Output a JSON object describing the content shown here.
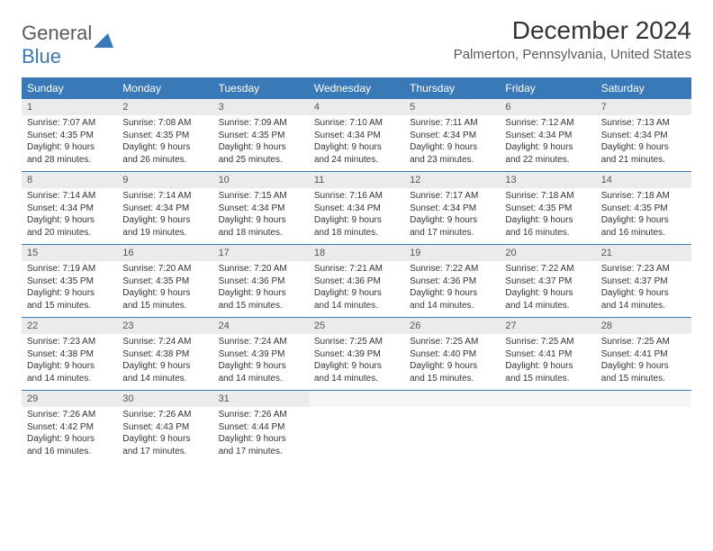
{
  "logo": {
    "word1": "General",
    "word2": "Blue"
  },
  "title": "December 2024",
  "location": "Palmerton, Pennsylvania, United States",
  "colors": {
    "brand_blue": "#3a79b7",
    "header_text": "#ffffff",
    "day_num_bg": "#ebebeb",
    "day_num_empty_bg": "#f5f5f5",
    "body_text": "#333333",
    "location_text": "#5a5a5a",
    "logo_gray": "#5a5a5a"
  },
  "typography": {
    "month_title_pt": 28,
    "location_pt": 15,
    "weekday_pt": 12,
    "daynum_pt": 11,
    "body_pt": 10
  },
  "weekdays": [
    "Sunday",
    "Monday",
    "Tuesday",
    "Wednesday",
    "Thursday",
    "Friday",
    "Saturday"
  ],
  "weeks": [
    [
      {
        "n": "1",
        "sunrise": "Sunrise: 7:07 AM",
        "sunset": "Sunset: 4:35 PM",
        "daylight": "Daylight: 9 hours and 28 minutes."
      },
      {
        "n": "2",
        "sunrise": "Sunrise: 7:08 AM",
        "sunset": "Sunset: 4:35 PM",
        "daylight": "Daylight: 9 hours and 26 minutes."
      },
      {
        "n": "3",
        "sunrise": "Sunrise: 7:09 AM",
        "sunset": "Sunset: 4:35 PM",
        "daylight": "Daylight: 9 hours and 25 minutes."
      },
      {
        "n": "4",
        "sunrise": "Sunrise: 7:10 AM",
        "sunset": "Sunset: 4:34 PM",
        "daylight": "Daylight: 9 hours and 24 minutes."
      },
      {
        "n": "5",
        "sunrise": "Sunrise: 7:11 AM",
        "sunset": "Sunset: 4:34 PM",
        "daylight": "Daylight: 9 hours and 23 minutes."
      },
      {
        "n": "6",
        "sunrise": "Sunrise: 7:12 AM",
        "sunset": "Sunset: 4:34 PM",
        "daylight": "Daylight: 9 hours and 22 minutes."
      },
      {
        "n": "7",
        "sunrise": "Sunrise: 7:13 AM",
        "sunset": "Sunset: 4:34 PM",
        "daylight": "Daylight: 9 hours and 21 minutes."
      }
    ],
    [
      {
        "n": "8",
        "sunrise": "Sunrise: 7:14 AM",
        "sunset": "Sunset: 4:34 PM",
        "daylight": "Daylight: 9 hours and 20 minutes."
      },
      {
        "n": "9",
        "sunrise": "Sunrise: 7:14 AM",
        "sunset": "Sunset: 4:34 PM",
        "daylight": "Daylight: 9 hours and 19 minutes."
      },
      {
        "n": "10",
        "sunrise": "Sunrise: 7:15 AM",
        "sunset": "Sunset: 4:34 PM",
        "daylight": "Daylight: 9 hours and 18 minutes."
      },
      {
        "n": "11",
        "sunrise": "Sunrise: 7:16 AM",
        "sunset": "Sunset: 4:34 PM",
        "daylight": "Daylight: 9 hours and 18 minutes."
      },
      {
        "n": "12",
        "sunrise": "Sunrise: 7:17 AM",
        "sunset": "Sunset: 4:34 PM",
        "daylight": "Daylight: 9 hours and 17 minutes."
      },
      {
        "n": "13",
        "sunrise": "Sunrise: 7:18 AM",
        "sunset": "Sunset: 4:35 PM",
        "daylight": "Daylight: 9 hours and 16 minutes."
      },
      {
        "n": "14",
        "sunrise": "Sunrise: 7:18 AM",
        "sunset": "Sunset: 4:35 PM",
        "daylight": "Daylight: 9 hours and 16 minutes."
      }
    ],
    [
      {
        "n": "15",
        "sunrise": "Sunrise: 7:19 AM",
        "sunset": "Sunset: 4:35 PM",
        "daylight": "Daylight: 9 hours and 15 minutes."
      },
      {
        "n": "16",
        "sunrise": "Sunrise: 7:20 AM",
        "sunset": "Sunset: 4:35 PM",
        "daylight": "Daylight: 9 hours and 15 minutes."
      },
      {
        "n": "17",
        "sunrise": "Sunrise: 7:20 AM",
        "sunset": "Sunset: 4:36 PM",
        "daylight": "Daylight: 9 hours and 15 minutes."
      },
      {
        "n": "18",
        "sunrise": "Sunrise: 7:21 AM",
        "sunset": "Sunset: 4:36 PM",
        "daylight": "Daylight: 9 hours and 14 minutes."
      },
      {
        "n": "19",
        "sunrise": "Sunrise: 7:22 AM",
        "sunset": "Sunset: 4:36 PM",
        "daylight": "Daylight: 9 hours and 14 minutes."
      },
      {
        "n": "20",
        "sunrise": "Sunrise: 7:22 AM",
        "sunset": "Sunset: 4:37 PM",
        "daylight": "Daylight: 9 hours and 14 minutes."
      },
      {
        "n": "21",
        "sunrise": "Sunrise: 7:23 AM",
        "sunset": "Sunset: 4:37 PM",
        "daylight": "Daylight: 9 hours and 14 minutes."
      }
    ],
    [
      {
        "n": "22",
        "sunrise": "Sunrise: 7:23 AM",
        "sunset": "Sunset: 4:38 PM",
        "daylight": "Daylight: 9 hours and 14 minutes."
      },
      {
        "n": "23",
        "sunrise": "Sunrise: 7:24 AM",
        "sunset": "Sunset: 4:38 PM",
        "daylight": "Daylight: 9 hours and 14 minutes."
      },
      {
        "n": "24",
        "sunrise": "Sunrise: 7:24 AM",
        "sunset": "Sunset: 4:39 PM",
        "daylight": "Daylight: 9 hours and 14 minutes."
      },
      {
        "n": "25",
        "sunrise": "Sunrise: 7:25 AM",
        "sunset": "Sunset: 4:39 PM",
        "daylight": "Daylight: 9 hours and 14 minutes."
      },
      {
        "n": "26",
        "sunrise": "Sunrise: 7:25 AM",
        "sunset": "Sunset: 4:40 PM",
        "daylight": "Daylight: 9 hours and 15 minutes."
      },
      {
        "n": "27",
        "sunrise": "Sunrise: 7:25 AM",
        "sunset": "Sunset: 4:41 PM",
        "daylight": "Daylight: 9 hours and 15 minutes."
      },
      {
        "n": "28",
        "sunrise": "Sunrise: 7:25 AM",
        "sunset": "Sunset: 4:41 PM",
        "daylight": "Daylight: 9 hours and 15 minutes."
      }
    ],
    [
      {
        "n": "29",
        "sunrise": "Sunrise: 7:26 AM",
        "sunset": "Sunset: 4:42 PM",
        "daylight": "Daylight: 9 hours and 16 minutes."
      },
      {
        "n": "30",
        "sunrise": "Sunrise: 7:26 AM",
        "sunset": "Sunset: 4:43 PM",
        "daylight": "Daylight: 9 hours and 17 minutes."
      },
      {
        "n": "31",
        "sunrise": "Sunrise: 7:26 AM",
        "sunset": "Sunset: 4:44 PM",
        "daylight": "Daylight: 9 hours and 17 minutes."
      },
      {
        "n": "",
        "empty": true
      },
      {
        "n": "",
        "empty": true
      },
      {
        "n": "",
        "empty": true
      },
      {
        "n": "",
        "empty": true
      }
    ]
  ]
}
